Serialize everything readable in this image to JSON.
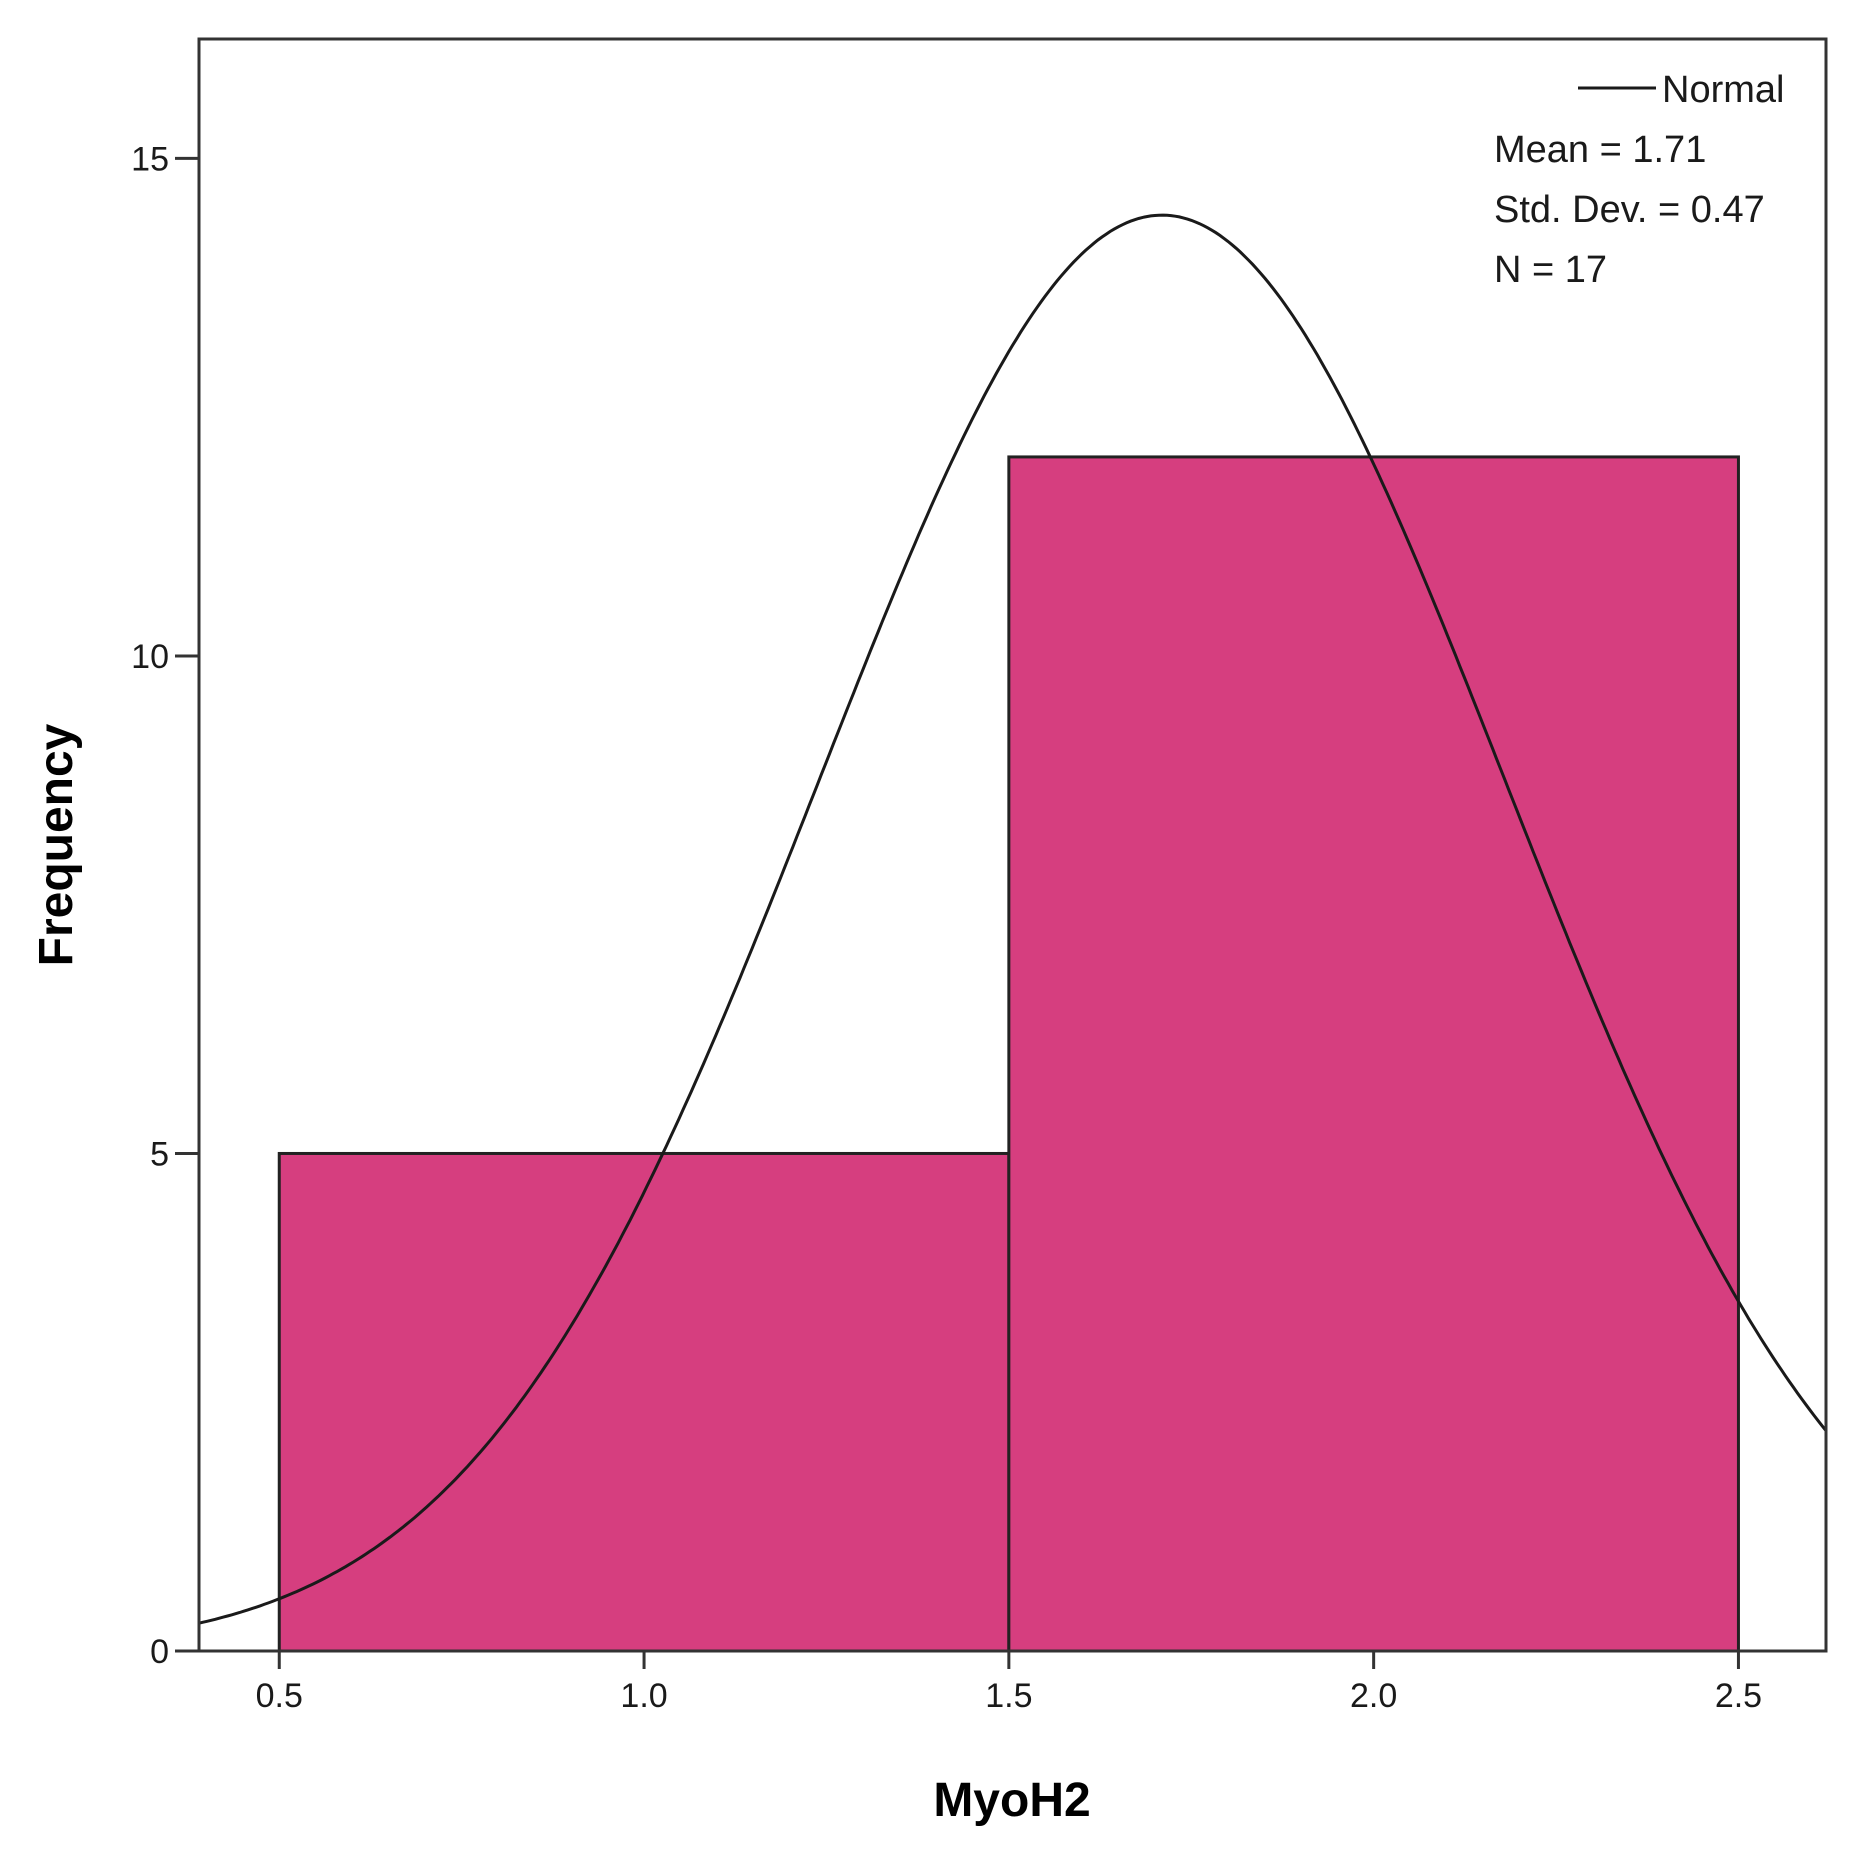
{
  "chart_data": {
    "type": "bar",
    "subtype": "histogram",
    "xlabel": "MyoH2",
    "ylabel": "Frequency",
    "xlim": [
      0.39,
      2.62
    ],
    "ylim": [
      0,
      16.2
    ],
    "xticks": [
      "0.5",
      "1.0",
      "1.5",
      "2.0",
      "2.5"
    ],
    "yticks": [
      "0",
      "5",
      "10",
      "15"
    ],
    "bins": [
      {
        "from": 0.5,
        "to": 1.5,
        "value": 5
      },
      {
        "from": 1.5,
        "to": 2.5,
        "value": 12
      }
    ],
    "bar_color": "#d63e7f",
    "curve": {
      "name": "Normal",
      "mean": 1.71,
      "sd": 0.47,
      "n": 17,
      "bin_width": 1.0
    },
    "legend": {
      "placement": "top-right",
      "entries": [
        "Normal"
      ],
      "stats": [
        "Mean = 1.71",
        "Std. Dev. = 0.47",
        "N = 17"
      ]
    },
    "grid": false
  }
}
